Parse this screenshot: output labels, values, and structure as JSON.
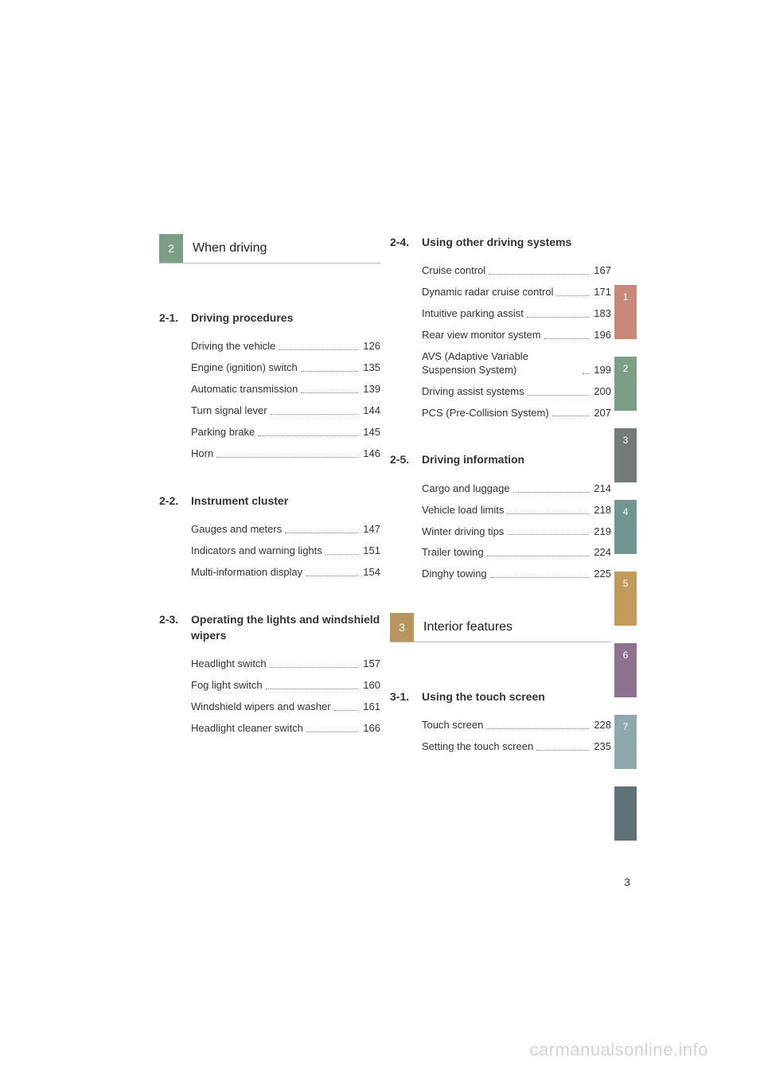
{
  "page_number": "3",
  "watermark": "carmanualsonline.info",
  "colors": {
    "chapter_green": "#7b9e85",
    "chapter_brown": "#b8945f",
    "text": "#333333",
    "leader": "#888888"
  },
  "left_chapter": {
    "num": "2",
    "title": "When driving"
  },
  "right_chapter": {
    "num": "3",
    "title": "Interior features"
  },
  "left_sections": [
    {
      "num": "2-1.",
      "title": "Driving procedures",
      "items": [
        {
          "label": "Driving the vehicle",
          "page": "126"
        },
        {
          "label": "Engine (ignition) switch",
          "page": "135"
        },
        {
          "label": "Automatic transmission",
          "page": "139"
        },
        {
          "label": "Turn signal lever",
          "page": "144"
        },
        {
          "label": "Parking brake",
          "page": "145"
        },
        {
          "label": "Horn",
          "page": "146"
        }
      ]
    },
    {
      "num": "2-2.",
      "title": "Instrument cluster",
      "items": [
        {
          "label": "Gauges and meters",
          "page": "147"
        },
        {
          "label": "Indicators and warning lights",
          "page": "151"
        },
        {
          "label": "Multi-information display",
          "page": "154"
        }
      ]
    },
    {
      "num": "2-3.",
      "title": "Operating the lights and windshield wipers",
      "items": [
        {
          "label": "Headlight switch",
          "page": "157"
        },
        {
          "label": "Fog light switch",
          "page": "160"
        },
        {
          "label": "Windshield wipers and washer",
          "page": "161"
        },
        {
          "label": "Headlight cleaner switch",
          "page": "166"
        }
      ]
    }
  ],
  "right_sections_top": [
    {
      "num": "2-4.",
      "title": "Using other driving systems",
      "items": [
        {
          "label": "Cruise control",
          "page": "167"
        },
        {
          "label": "Dynamic radar cruise control",
          "page": "171"
        },
        {
          "label": "Intuitive parking assist",
          "page": "183"
        },
        {
          "label": "Rear view monitor system",
          "page": "196"
        },
        {
          "label": "AVS (Adaptive Variable Suspension System)",
          "page": "199"
        },
        {
          "label": "Driving assist systems",
          "page": "200"
        },
        {
          "label": "PCS (Pre-Collision System)",
          "page": "207"
        }
      ]
    },
    {
      "num": "2-5.",
      "title": "Driving information",
      "items": [
        {
          "label": "Cargo and luggage",
          "page": "214"
        },
        {
          "label": "Vehicle load limits",
          "page": "218"
        },
        {
          "label": "Winter driving tips",
          "page": "219"
        },
        {
          "label": "Trailer towing",
          "page": "224"
        },
        {
          "label": "Dinghy towing",
          "page": "225"
        }
      ]
    }
  ],
  "right_sections_bottom": [
    {
      "num": "3-1.",
      "title": "Using the touch screen",
      "items": [
        {
          "label": "Touch screen",
          "page": "228"
        },
        {
          "label": "Setting the touch screen",
          "page": "235"
        }
      ]
    }
  ],
  "tabs": [
    {
      "label": "1",
      "color": "#c88978"
    },
    {
      "label": "2",
      "color": "#7b9e85"
    },
    {
      "label": "3",
      "color": "#727a7a"
    },
    {
      "label": "4",
      "color": "#6f9690"
    },
    {
      "label": "5",
      "color": "#c49a5a"
    },
    {
      "label": "6",
      "color": "#8e718f"
    },
    {
      "label": "7",
      "color": "#8fa8ad"
    },
    {
      "label": "",
      "color": "#5e7378"
    }
  ]
}
